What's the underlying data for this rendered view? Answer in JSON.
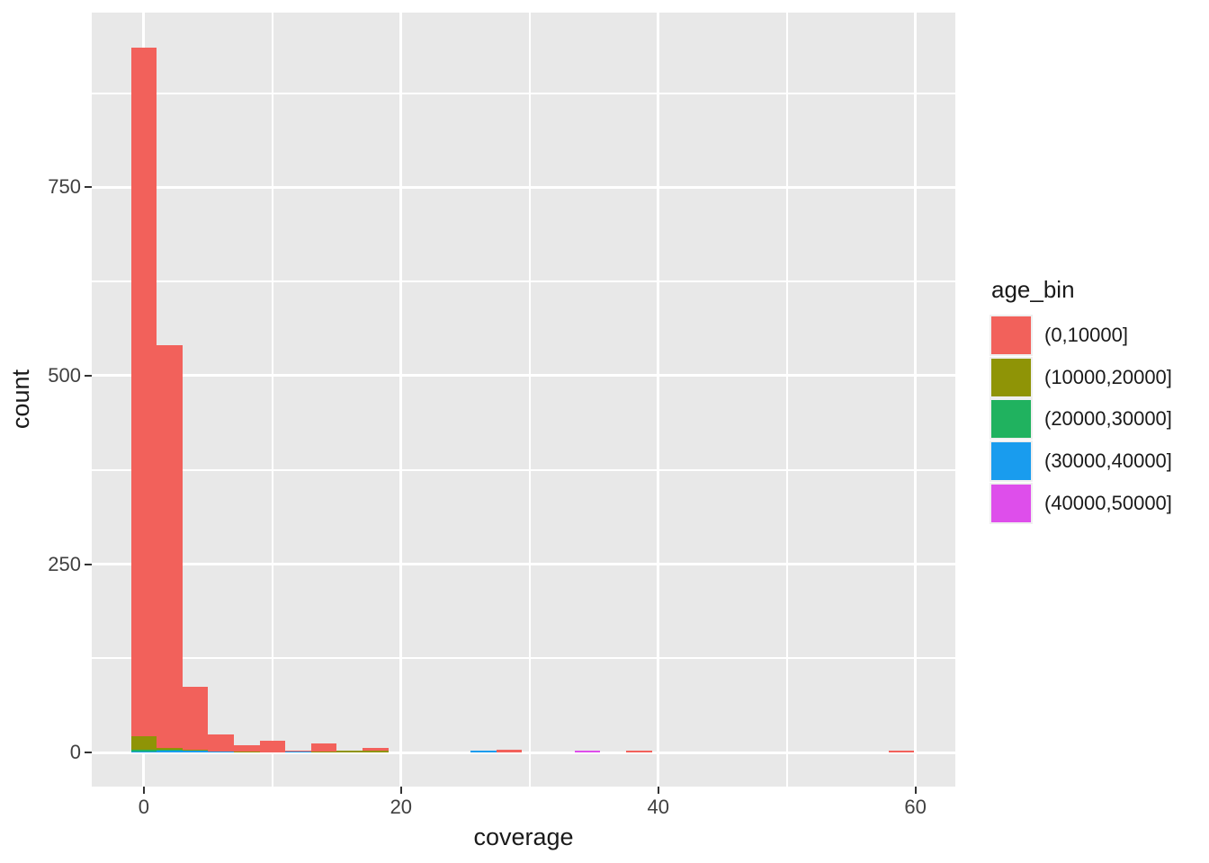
{
  "chart_data": {
    "type": "bar",
    "subtype": "stacked-histogram",
    "title": "",
    "xlabel": "coverage",
    "ylabel": "count",
    "legend_title": "age_bin",
    "legend_position": "right",
    "grid": true,
    "panel_bg": "#E8E8E8",
    "grid_color": "#FFFFFF",
    "tick_color": "#333333",
    "tick_label_color": "#404040",
    "title_color": "#1A1A1A",
    "xlim": [
      -4.05,
      63.1
    ],
    "ylim": [
      -45.3,
      982
    ],
    "x_ticks": [
      0,
      20,
      40,
      60
    ],
    "x_minor_ticks": [
      10,
      30,
      50
    ],
    "y_ticks": [
      0,
      250,
      500,
      750
    ],
    "y_minor_ticks": [
      125,
      375,
      625,
      875
    ],
    "binwidth": 2,
    "series": [
      {
        "label": "(0,10000]",
        "color": "#F2615B"
      },
      {
        "label": "(10000,20000]",
        "color": "#8F9406"
      },
      {
        "label": "(20000,30000]",
        "color": "#20B25F"
      },
      {
        "label": "(30000,40000]",
        "color": "#199CEE"
      },
      {
        "label": "(40000,50000]",
        "color": "#DE4EEB"
      }
    ],
    "stack_order_note": "counts arrays follow series order top-of-stack-first: [(0,10000], (10000,20000], (20000,30000], (30000,40000], (40000,50000]]; stacking bottom-to-top is the reverse",
    "bars": [
      {
        "center": 0,
        "counts": [
          914,
          17,
          2.5,
          1.5,
          0
        ]
      },
      {
        "center": 2,
        "counts": [
          534,
          3,
          1,
          2.5,
          0
        ]
      },
      {
        "center": 4,
        "counts": [
          84,
          1,
          0,
          2.5,
          0
        ]
      },
      {
        "center": 6,
        "counts": [
          23,
          0,
          0,
          1,
          0
        ]
      },
      {
        "center": 8,
        "counts": [
          9,
          1,
          0,
          0,
          0
        ]
      },
      {
        "center": 10,
        "counts": [
          15,
          0,
          0,
          0,
          0
        ]
      },
      {
        "center": 12,
        "counts": [
          1,
          0,
          0,
          1.5,
          0
        ]
      },
      {
        "center": 14,
        "counts": [
          10,
          1.5,
          0,
          0,
          0
        ]
      },
      {
        "center": 16,
        "counts": [
          0,
          2.5,
          0,
          0,
          0
        ]
      },
      {
        "center": 18,
        "counts": [
          3.5,
          2,
          0,
          0,
          0
        ]
      },
      {
        "center": 26.4,
        "counts": [
          0,
          0,
          0,
          2.5,
          0
        ]
      },
      {
        "center": 28.4,
        "counts": [
          3.5,
          0,
          0,
          0,
          0
        ]
      },
      {
        "center": 34.5,
        "counts": [
          0,
          0,
          0,
          0,
          2.5
        ]
      },
      {
        "center": 38.5,
        "counts": [
          2,
          0,
          0,
          0,
          0
        ]
      },
      {
        "center": 58.9,
        "counts": [
          3,
          0,
          0,
          0,
          0
        ]
      }
    ]
  }
}
